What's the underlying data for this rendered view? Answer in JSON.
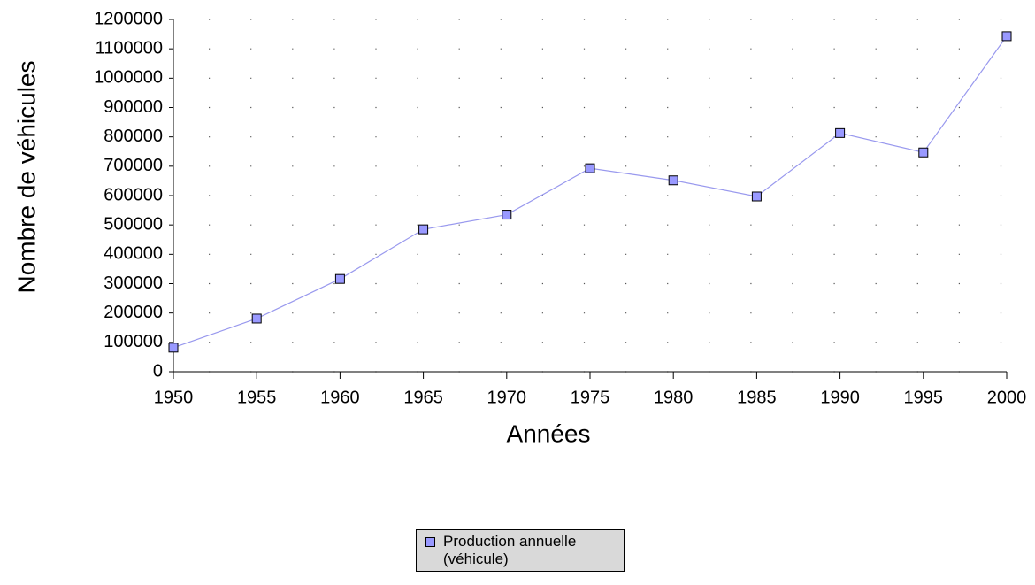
{
  "chart_data": {
    "type": "line",
    "x_label": "Années",
    "y_label": "Nombre de véhicules",
    "x": [
      1950,
      1955,
      1960,
      1965,
      1970,
      1975,
      1980,
      1985,
      1990,
      1995,
      2000
    ],
    "series": [
      {
        "name": "Production annuelle (véhicule)",
        "color": "#9999ff",
        "line_color": "#9999ee",
        "values": [
          82000,
          181000,
          316000,
          485000,
          535000,
          693000,
          652000,
          597000,
          813000,
          747000,
          1143000
        ]
      }
    ],
    "xlim": [
      1950,
      2000
    ],
    "xticks": [
      1950,
      1955,
      1960,
      1965,
      1970,
      1975,
      1980,
      1985,
      1990,
      1995,
      2000
    ],
    "ylim": [
      0,
      1200000
    ],
    "yticks": [
      0,
      100000,
      200000,
      300000,
      400000,
      500000,
      600000,
      700000,
      800000,
      900000,
      1000000,
      1100000,
      1200000
    ],
    "grid": true,
    "legend": "bottom"
  }
}
